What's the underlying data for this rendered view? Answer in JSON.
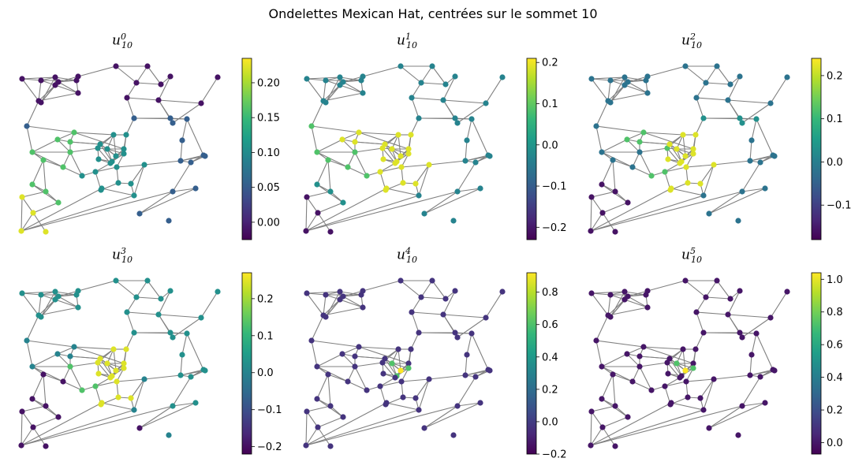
{
  "title": "Ondelettes Mexican Hat, centrées sur le sommet 10",
  "chart_data": [
    {
      "type": "network",
      "var": "u",
      "sub": "10",
      "sup": "0",
      "colormap": "viridis",
      "vmin": -0.025,
      "vmax": 0.235,
      "ticks": [
        "0.00",
        "0.05",
        "0.10",
        "0.15",
        "0.20"
      ],
      "tick_values": [
        0,
        0.05,
        0.1,
        0.15,
        0.2
      ]
    },
    {
      "type": "network",
      "var": "u",
      "sub": "10",
      "sup": "1",
      "colormap": "viridis",
      "vmin": -0.23,
      "vmax": 0.21,
      "ticks": [
        "−0.2",
        "−0.1",
        "0.0",
        "0.1",
        "0.2"
      ],
      "tick_values": [
        -0.2,
        -0.1,
        0,
        0.1,
        0.2
      ]
    },
    {
      "type": "network",
      "var": "u",
      "sub": "10",
      "sup": "2",
      "colormap": "viridis",
      "vmin": -0.18,
      "vmax": 0.24,
      "ticks": [
        "−0.1",
        "0.0",
        "0.1",
        "0.2"
      ],
      "tick_values": [
        -0.1,
        0,
        0.1,
        0.2
      ]
    },
    {
      "type": "network",
      "var": "u",
      "sub": "10",
      "sup": "3",
      "colormap": "viridis",
      "vmin": -0.22,
      "vmax": 0.27,
      "ticks": [
        "−0.2",
        "−0.1",
        "0.0",
        "0.1",
        "0.2"
      ],
      "tick_values": [
        -0.2,
        -0.1,
        0,
        0.1,
        0.2
      ]
    },
    {
      "type": "network",
      "var": "u",
      "sub": "10",
      "sup": "4",
      "colormap": "viridis",
      "vmin": -0.2,
      "vmax": 0.92,
      "ticks": [
        "−0.2",
        "0.0",
        "0.2",
        "0.4",
        "0.6",
        "0.8"
      ],
      "tick_values": [
        -0.2,
        0,
        0.2,
        0.4,
        0.6,
        0.8
      ]
    },
    {
      "type": "network",
      "var": "u",
      "sub": "10",
      "sup": "5",
      "colormap": "viridis",
      "vmin": -0.07,
      "vmax": 1.04,
      "ticks": [
        "0.0",
        "0.2",
        "0.4",
        "0.6",
        "0.8",
        "1.0"
      ],
      "tick_values": [
        0,
        0.2,
        0.4,
        0.6,
        0.8,
        1.0
      ]
    }
  ]
}
